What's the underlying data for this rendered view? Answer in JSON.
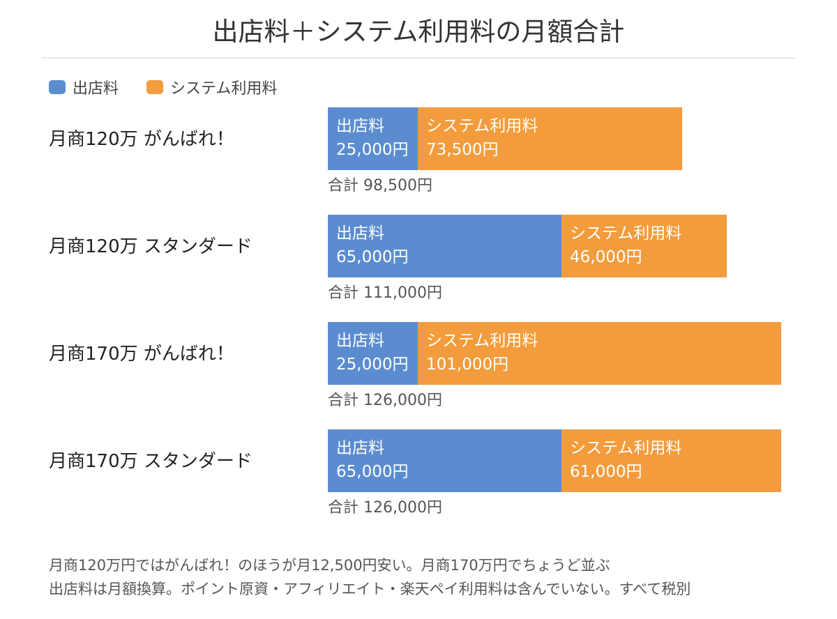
{
  "title": "出店料＋システム利用料の月額合計",
  "legend": [
    {
      "label": "出店料",
      "color": "#5b8ccf"
    },
    {
      "label": "システム利用料",
      "color": "#f39c3d"
    }
  ],
  "colors": {
    "shop_fee": "#5b8ccf",
    "system_fee": "#f39c3d"
  },
  "chart_data": {
    "type": "bar",
    "orientation": "horizontal",
    "stacked": true,
    "title": "出店料＋システム利用料の月額合計",
    "categories": [
      "月商120万 がんばれ！",
      "月商120万 スタンダード",
      "月商170万 がんばれ！",
      "月商170万 スタンダード"
    ],
    "series": [
      {
        "name": "出店料",
        "values": [
          25000,
          65000,
          25000,
          65000
        ]
      },
      {
        "name": "システム利用料",
        "values": [
          73500,
          46000,
          101000,
          61000
        ]
      }
    ],
    "totals": [
      98500,
      111000,
      126000,
      126000
    ],
    "legend_position": "top-left",
    "grid": false,
    "xlim": [
      0,
      126000
    ]
  },
  "rows": [
    {
      "label": "月商120万 がんばれ！",
      "seg1_name": "出店料",
      "seg1_value": "25,000円",
      "seg2_name": "システム利用料",
      "seg2_value": "73,500円",
      "total": "合計 98,500円"
    },
    {
      "label": "月商120万 スタンダード",
      "seg1_name": "出店料",
      "seg1_value": "65,000円",
      "seg2_name": "システム利用料",
      "seg2_value": "46,000円",
      "total": "合計 111,000円"
    },
    {
      "label": "月商170万 がんばれ！",
      "seg1_name": "出店料",
      "seg1_value": "25,000円",
      "seg2_name": "システム利用料",
      "seg2_value": "101,000円",
      "total": "合計 126,000円"
    },
    {
      "label": "月商170万 スタンダード",
      "seg1_name": "出店料",
      "seg1_value": "65,000円",
      "seg2_name": "システム利用料",
      "seg2_value": "61,000円",
      "total": "合計 126,000円"
    }
  ],
  "notes": [
    "月商120万円ではがんばれ！のほうが月12,500円安い。月商170万円でちょうど並ぶ",
    "出店料は月額換算。ポイント原資・アフィリエイト・楽天ペイ利用料は含んでいない。すべて税別"
  ]
}
